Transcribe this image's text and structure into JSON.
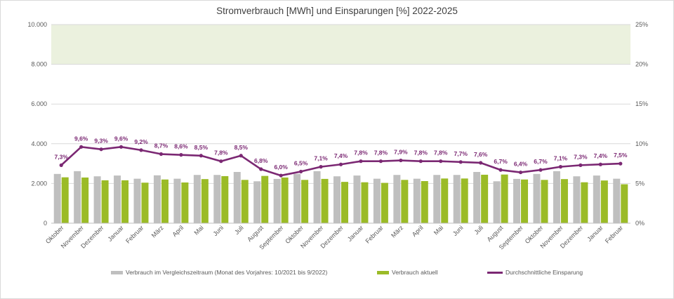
{
  "chart_data": {
    "type": "bar+line",
    "title": "Stromverbrauch [MWh] und Einsparungen [%] 2022-2025",
    "categories": [
      "Oktober",
      "November",
      "Dezember",
      "Januar",
      "Februar",
      "März",
      "April",
      "Mai",
      "Juni",
      "Juli",
      "August",
      "September",
      "Oktober",
      "November",
      "Dezember",
      "Januar",
      "Februar",
      "März",
      "April",
      "Mai",
      "Juni",
      "Juli",
      "August",
      "September",
      "Oktober",
      "November",
      "Dezember",
      "Januar",
      "Februar"
    ],
    "series": [
      {
        "name": "Verbrauch im Vergleichszeitraum (Monat des Vorjahres: 10/2021 bis 9/2022)",
        "type": "bar",
        "axis": "left",
        "color": "#bfbfbf",
        "values": [
          2480,
          2620,
          2360,
          2400,
          2240,
          2410,
          2240,
          2430,
          2430,
          2580,
          2110,
          2230,
          2480,
          2620,
          2360,
          2400,
          2240,
          2430,
          2240,
          2430,
          2430,
          2580,
          2110,
          2230,
          2480,
          2620,
          2360,
          2400,
          2240
        ]
      },
      {
        "name": "Verbrauch aktuell",
        "type": "bar",
        "axis": "left",
        "color": "#9bbb27",
        "values": [
          2310,
          2300,
          2160,
          2160,
          2040,
          2200,
          2050,
          2220,
          2370,
          2180,
          2380,
          2300,
          2180,
          2230,
          2080,
          2060,
          2030,
          2180,
          2120,
          2250,
          2250,
          2440,
          2450,
          2200,
          2180,
          2220,
          2060,
          2150,
          1960
        ]
      },
      {
        "name": "Durchschnittliche Einsparung",
        "type": "line",
        "axis": "right",
        "color": "#7b2873",
        "values": [
          7.3,
          9.6,
          9.3,
          9.6,
          9.2,
          8.7,
          8.6,
          8.5,
          7.8,
          8.5,
          6.8,
          6.0,
          6.5,
          7.1,
          7.4,
          7.8,
          7.8,
          7.9,
          7.8,
          7.8,
          7.7,
          7.6,
          6.7,
          6.4,
          6.7,
          7.1,
          7.3,
          7.4,
          7.5
        ],
        "labels": [
          "7,3%",
          "9,6%",
          "9,3%",
          "9,6%",
          "9,2%",
          "8,7%",
          "8,6%",
          "8,5%",
          "7,8%",
          "8,5%",
          "6,8%",
          "6,0%",
          "6,5%",
          "7,1%",
          "7,4%",
          "7,8%",
          "7,8%",
          "7,9%",
          "7,8%",
          "7,8%",
          "7,7%",
          "7,6%",
          "6,7%",
          "6,4%",
          "6,7%",
          "7,1%",
          "7,3%",
          "7,4%",
          "7,5%"
        ]
      }
    ],
    "y_left": {
      "min": 0,
      "max": 10000,
      "ticks": [
        0,
        2000,
        4000,
        6000,
        8000,
        10000
      ],
      "tick_labels": [
        "0",
        "2.000",
        "4.000",
        "6.000",
        "8.000",
        "10.000"
      ]
    },
    "y_right": {
      "min": 0,
      "max": 25,
      "ticks": [
        0,
        5,
        10,
        15,
        20,
        25
      ],
      "tick_labels": [
        "0%",
        "5%",
        "10%",
        "15%",
        "20%",
        "25%"
      ]
    },
    "band": {
      "from": 20,
      "to": 25,
      "axis": "right",
      "color": "#ebf1de"
    },
    "grid": true,
    "legend_position": "bottom"
  }
}
